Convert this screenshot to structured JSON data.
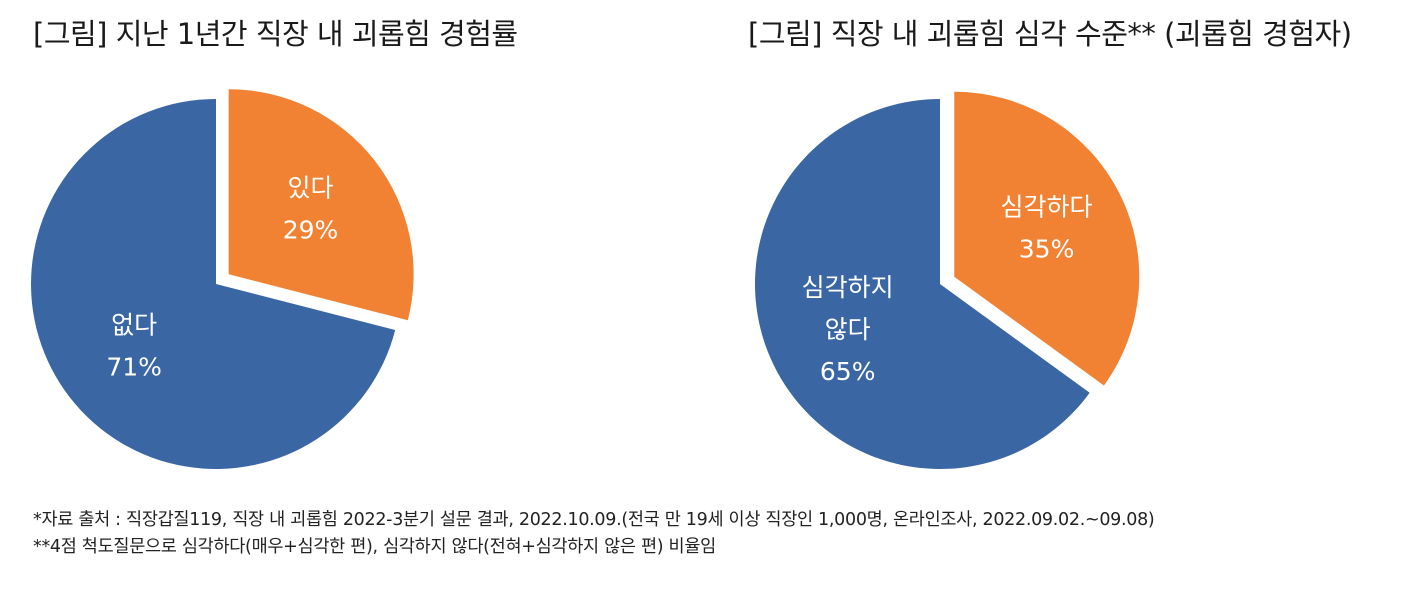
{
  "colors": {
    "blue": "#3A67A3",
    "orange": "#F28233",
    "text": "#1a1a1a"
  },
  "chart_data": [
    {
      "type": "pie",
      "title": "[그림] 지난 1년간 직장 내 괴롭힘 경험률",
      "slices": [
        {
          "label": "있다",
          "value": 29,
          "value_label": "29%",
          "color": "#F28233",
          "exploded": true
        },
        {
          "label": "없다",
          "value": 71,
          "value_label": "71%",
          "color": "#3A67A3",
          "exploded": false
        }
      ]
    },
    {
      "type": "pie",
      "title": "[그림] 직장 내 괴롭힘 심각 수준** (괴롭힘 경험자)",
      "slices": [
        {
          "label": "심각하다",
          "value": 35,
          "value_label": "35%",
          "color": "#F28233",
          "exploded": true
        },
        {
          "label": "심각하지 않다",
          "value": 65,
          "value_label": "65%",
          "color": "#3A67A3",
          "exploded": false
        }
      ]
    }
  ],
  "footnotes": [
    "*자료 출처 : 직장갑질119, 직장 내 괴롭힘 2022-3분기 설문 결과, 2022.10.09.(전국 만 19세 이상 직장인 1,000명, 온라인조사, 2022.09.02.~09.08)",
    "**4점 척도질문으로 심각하다(매우+심각한 편), 심각하지 않다(전혀+심각하지 않은 편) 비율임"
  ]
}
